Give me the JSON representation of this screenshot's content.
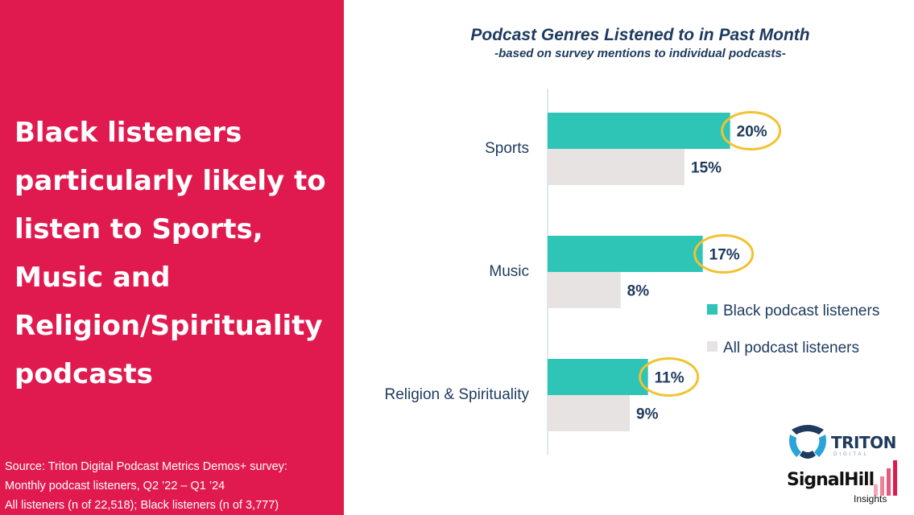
{
  "headline": {
    "lines": [
      "Black listeners",
      "particularly likely to",
      "listen to Sports,",
      "Music and",
      "Religion/Spirituality",
      "podcasts"
    ]
  },
  "source": {
    "lines": [
      "Source: Triton Digital Podcast Metrics Demos+ survey:",
      "Monthly podcast listeners, Q2 ’22 – Q1 ’24",
      "All listeners (n of 22,518); Black listeners (n of 3,777)"
    ]
  },
  "chart_data": {
    "type": "bar",
    "orientation": "horizontal",
    "title": "Podcast Genres Listened to in Past Month",
    "subtitle": "-based on survey mentions to individual podcasts-",
    "categories": [
      "Sports",
      "Music",
      "Religion & Spirituality"
    ],
    "series": [
      {
        "name": "Black podcast listeners",
        "values": [
          20,
          17,
          11
        ],
        "labels": [
          "20%",
          "17%",
          "11%"
        ],
        "color": "#2ec4b6",
        "highlighted": true
      },
      {
        "name": "All podcast listeners",
        "values": [
          15,
          8,
          9
        ],
        "labels": [
          "15%",
          "8%",
          "9%"
        ],
        "color": "#e8e3e3"
      }
    ],
    "xlim": [
      0,
      30
    ],
    "grid": false,
    "legend_position": "right",
    "highlight_color": "#f2c230",
    "label_color": "#1d3a5f"
  },
  "logos": {
    "triton": {
      "word": "TRITON",
      "sub": "DIGITAL"
    },
    "signalhill": {
      "word": "SignalHill",
      "sub": "Insights"
    }
  },
  "colors": {
    "accent": "#e01a4f",
    "text_dark": "#1d3a5f"
  }
}
